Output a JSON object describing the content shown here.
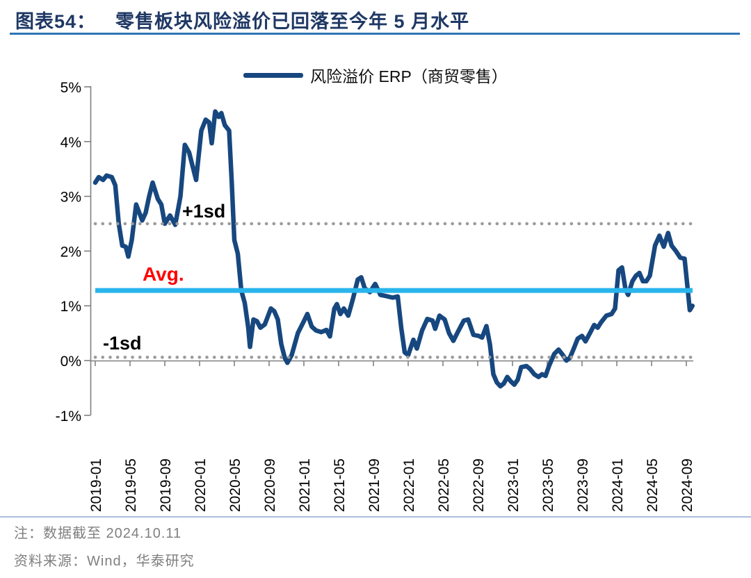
{
  "header": {
    "figure_label": "图表54：",
    "title": "零售板块风险溢价已回落至今年 5 月水平"
  },
  "legend": {
    "series_label": "风险溢价 ERP（商贸零售）"
  },
  "footnotes": {
    "note": "注：数据截至 2024.10.11",
    "source": "资料来源：Wind，华泰研究"
  },
  "colors": {
    "series": "#17477F",
    "avg_line": "#29B5EB",
    "sd_line": "#9C9C9C",
    "avg_label": "#FF0000",
    "sd_label": "#000000",
    "title": "#1F3864",
    "title_underline": "#2E74B5",
    "axis": "#808080",
    "tick_label": "#000000",
    "footnote": "#7F7F7F",
    "separator": "#AEBDDC"
  },
  "chart_data": {
    "type": "line",
    "title": "零售板块风险溢价已回落至今年 5 月水平",
    "xlabel": "",
    "ylabel": "",
    "ylim": [
      -1,
      5
    ],
    "y_unit": "%",
    "grid": false,
    "legend_position": "top-center",
    "x_unit": "months_since_2019-01",
    "x_ticks": [
      "2019-01",
      "2019-05",
      "2019-09",
      "2020-01",
      "2020-05",
      "2020-09",
      "2021-01",
      "2021-05",
      "2021-09",
      "2022-01",
      "2022-05",
      "2022-09",
      "2023-01",
      "2023-05",
      "2023-09",
      "2024-01",
      "2024-05",
      "2024-09"
    ],
    "x_tick_interval_months": 4,
    "y_ticks": [
      {
        "label": "5%",
        "value": 5
      },
      {
        "label": "4%",
        "value": 4
      },
      {
        "label": "3%",
        "value": 3
      },
      {
        "label": "2%",
        "value": 2
      },
      {
        "label": "1%",
        "value": 1
      },
      {
        "label": "0%",
        "value": 0
      },
      {
        "label": "-1%",
        "value": -1
      }
    ],
    "reference_lines": [
      {
        "name": "plus-1sd",
        "label": "+1sd",
        "value": 2.5,
        "style": "dotted",
        "color": "#9C9C9C",
        "label_color": "#000000"
      },
      {
        "name": "avg",
        "label": "Avg.",
        "value": 1.28,
        "style": "solid",
        "color": "#29B5EB",
        "label_color": "#FF0000"
      },
      {
        "name": "minus-1sd",
        "label": "-1sd",
        "value": 0.06,
        "style": "dotted",
        "color": "#9C9C9C",
        "label_color": "#000000"
      }
    ],
    "series": [
      {
        "name": "风险溢价 ERP（商贸零售）",
        "color": "#17477F",
        "points": [
          [
            0,
            3.25
          ],
          [
            0.4,
            3.35
          ],
          [
            0.9,
            3.3
          ],
          [
            1.3,
            3.38
          ],
          [
            1.9,
            3.35
          ],
          [
            2.3,
            3.2
          ],
          [
            2.7,
            2.5
          ],
          [
            3.1,
            2.1
          ],
          [
            3.5,
            2.08
          ],
          [
            3.8,
            1.9
          ],
          [
            4.2,
            2.2
          ],
          [
            4.7,
            2.85
          ],
          [
            5.4,
            2.56
          ],
          [
            5.8,
            2.7
          ],
          [
            6.2,
            3.0
          ],
          [
            6.6,
            3.25
          ],
          [
            7.2,
            2.95
          ],
          [
            7.6,
            2.85
          ],
          [
            8.0,
            2.5
          ],
          [
            8.6,
            2.65
          ],
          [
            9.2,
            2.48
          ],
          [
            9.8,
            3.0
          ],
          [
            10.3,
            3.94
          ],
          [
            10.8,
            3.8
          ],
          [
            11.2,
            3.55
          ],
          [
            11.6,
            3.3
          ],
          [
            12.2,
            4.2
          ],
          [
            12.7,
            4.4
          ],
          [
            13.1,
            4.35
          ],
          [
            13.4,
            3.97
          ],
          [
            13.8,
            4.55
          ],
          [
            14.2,
            4.45
          ],
          [
            14.5,
            4.52
          ],
          [
            14.9,
            4.3
          ],
          [
            15.4,
            4.2
          ],
          [
            15.7,
            3.25
          ],
          [
            16.0,
            2.2
          ],
          [
            16.4,
            1.95
          ],
          [
            16.8,
            1.28
          ],
          [
            17.2,
            1.05
          ],
          [
            17.6,
            0.6
          ],
          [
            17.8,
            0.25
          ],
          [
            18.2,
            0.75
          ],
          [
            18.6,
            0.72
          ],
          [
            19.0,
            0.6
          ],
          [
            19.5,
            0.66
          ],
          [
            20.2,
            0.95
          ],
          [
            20.6,
            0.9
          ],
          [
            21.0,
            0.75
          ],
          [
            21.4,
            0.3
          ],
          [
            21.8,
            0.05
          ],
          [
            22.1,
            -0.04
          ],
          [
            22.6,
            0.1
          ],
          [
            23.3,
            0.5
          ],
          [
            24.0,
            0.72
          ],
          [
            24.4,
            0.85
          ],
          [
            24.9,
            0.62
          ],
          [
            25.4,
            0.55
          ],
          [
            26.0,
            0.52
          ],
          [
            26.6,
            0.56
          ],
          [
            27.0,
            0.44
          ],
          [
            27.5,
            0.95
          ],
          [
            27.8,
            1.03
          ],
          [
            28.2,
            0.85
          ],
          [
            28.6,
            0.95
          ],
          [
            29.1,
            0.82
          ],
          [
            29.6,
            1.1
          ],
          [
            30.2,
            1.48
          ],
          [
            30.6,
            1.52
          ],
          [
            31.0,
            1.32
          ],
          [
            31.6,
            1.25
          ],
          [
            32.2,
            1.4
          ],
          [
            32.8,
            1.2
          ],
          [
            33.4,
            1.18
          ],
          [
            34.2,
            1.15
          ],
          [
            34.8,
            1.17
          ],
          [
            35.2,
            0.6
          ],
          [
            35.6,
            0.15
          ],
          [
            36.0,
            0.1
          ],
          [
            36.6,
            0.38
          ],
          [
            37.0,
            0.22
          ],
          [
            37.6,
            0.55
          ],
          [
            38.2,
            0.76
          ],
          [
            38.8,
            0.73
          ],
          [
            39.1,
            0.58
          ],
          [
            39.6,
            0.82
          ],
          [
            40.2,
            0.75
          ],
          [
            40.7,
            0.5
          ],
          [
            41.2,
            0.36
          ],
          [
            41.8,
            0.55
          ],
          [
            42.4,
            0.73
          ],
          [
            42.9,
            0.75
          ],
          [
            43.5,
            0.47
          ],
          [
            44.1,
            0.45
          ],
          [
            44.5,
            0.42
          ],
          [
            45.0,
            0.63
          ],
          [
            45.4,
            0.3
          ],
          [
            45.8,
            -0.25
          ],
          [
            46.2,
            -0.4
          ],
          [
            46.6,
            -0.47
          ],
          [
            47.0,
            -0.42
          ],
          [
            47.4,
            -0.3
          ],
          [
            47.8,
            -0.38
          ],
          [
            48.2,
            -0.44
          ],
          [
            48.6,
            -0.35
          ],
          [
            49.0,
            -0.12
          ],
          [
            49.6,
            -0.1
          ],
          [
            50.0,
            -0.15
          ],
          [
            50.5,
            -0.25
          ],
          [
            51.0,
            -0.3
          ],
          [
            51.4,
            -0.25
          ],
          [
            51.8,
            -0.28
          ],
          [
            52.2,
            -0.1
          ],
          [
            52.8,
            0.12
          ],
          [
            53.3,
            0.2
          ],
          [
            53.8,
            0.1
          ],
          [
            54.2,
            0.0
          ],
          [
            54.6,
            0.05
          ],
          [
            55.0,
            0.2
          ],
          [
            55.5,
            0.4
          ],
          [
            56.0,
            0.45
          ],
          [
            56.4,
            0.35
          ],
          [
            56.9,
            0.5
          ],
          [
            57.4,
            0.65
          ],
          [
            57.8,
            0.6
          ],
          [
            58.2,
            0.7
          ],
          [
            58.8,
            0.82
          ],
          [
            59.4,
            0.85
          ],
          [
            59.8,
            0.95
          ],
          [
            60.2,
            1.65
          ],
          [
            60.6,
            1.7
          ],
          [
            61.0,
            1.3
          ],
          [
            61.3,
            1.2
          ],
          [
            61.8,
            1.45
          ],
          [
            62.2,
            1.55
          ],
          [
            62.6,
            1.6
          ],
          [
            63.0,
            1.45
          ],
          [
            63.4,
            1.45
          ],
          [
            63.8,
            1.55
          ],
          [
            64.4,
            2.1
          ],
          [
            64.9,
            2.28
          ],
          [
            65.4,
            2.08
          ],
          [
            65.9,
            2.33
          ],
          [
            66.3,
            2.1
          ],
          [
            66.8,
            2.0
          ],
          [
            67.3,
            1.88
          ],
          [
            67.8,
            1.86
          ],
          [
            68.1,
            1.4
          ],
          [
            68.4,
            0.92
          ],
          [
            68.7,
            1.0
          ]
        ]
      }
    ]
  }
}
